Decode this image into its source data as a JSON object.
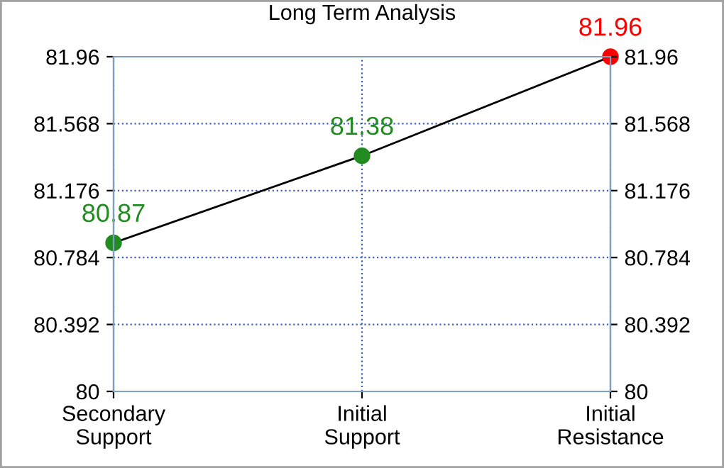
{
  "chart_data": {
    "type": "line",
    "title": "Long Term Analysis",
    "categories": [
      "Secondary\nSupport",
      "Initial\nSupport",
      "Initial\nResistance"
    ],
    "series": [
      {
        "color": "#000000",
        "colors": [
          "#228b22",
          "#228b22",
          "#ff0000"
        ],
        "values": [
          80.87,
          81.38,
          81.96
        ]
      }
    ],
    "ylim": [
      80,
      81.96
    ],
    "yticks": [
      80,
      80.392,
      80.784,
      81.176,
      81.568,
      81.96
    ],
    "y2lim": [
      80,
      81.96
    ],
    "y2ticks": [
      80,
      80.392,
      80.784,
      81.176,
      81.568,
      81.96
    ],
    "grid": true,
    "marker": "circle",
    "line_style": "solid",
    "data_labels": true,
    "legend": false
  }
}
